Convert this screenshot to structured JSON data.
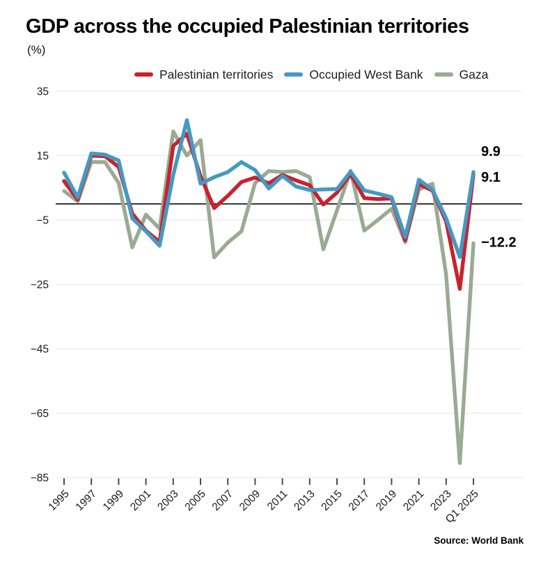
{
  "page": {
    "title": "GDP across the occupied Palestinian territories",
    "subtitle": "(%)",
    "source": "Source: World Bank"
  },
  "legend": [
    {
      "label": "Palestinian territories",
      "color": "#c9212e"
    },
    {
      "label": "Occupied West Bank",
      "color": "#4599c2"
    },
    {
      "label": "Gaza",
      "color": "#9aaa93"
    }
  ],
  "annotations": [
    {
      "text": "9.9",
      "series": "Occupied West Bank"
    },
    {
      "text": "9.1",
      "series": "Palestinian territories"
    },
    {
      "text": "−12.2",
      "series": "Gaza"
    }
  ],
  "colors": {
    "grid": "#e4e4e4",
    "zero_line": "#1c1c1c",
    "tick": "#4a4a4a",
    "text": "#191919"
  },
  "chart_data": {
    "type": "line",
    "x": [
      "1995",
      "1996",
      "1997",
      "1998",
      "1999",
      "2000",
      "2001",
      "2002",
      "2003",
      "2004",
      "2005",
      "2006",
      "2007",
      "2008",
      "2009",
      "2010",
      "2011",
      "2012",
      "2013",
      "2014",
      "2015",
      "2016",
      "2017",
      "2018",
      "2019",
      "2020",
      "2021",
      "2022",
      "2023",
      "2024",
      "Q1 2025"
    ],
    "x_tick_labels": [
      "1995",
      "1997",
      "1999",
      "2001",
      "2003",
      "2005",
      "2007",
      "2009",
      "2011",
      "2013",
      "2015",
      "2017",
      "2019",
      "2021",
      "2023",
      "Q1 2025"
    ],
    "y_ticks": [
      35,
      15,
      -5,
      -25,
      -45,
      -65,
      -85
    ],
    "y_tick_labels": [
      "35",
      "15",
      "−5",
      "−25",
      "−45",
      "−65",
      "−85"
    ],
    "ylim": [
      -85,
      35
    ],
    "zero_line": true,
    "grid": "horizontal",
    "legend_position": "top",
    "title": "GDP across the occupied Palestinian territories",
    "ylabel": "(%)",
    "series": [
      {
        "name": "Palestinian territories",
        "color": "#c9212e",
        "values": [
          7.1,
          1.3,
          15.0,
          14.8,
          11.5,
          -3.0,
          -8.3,
          -11.8,
          18.0,
          21.8,
          8.6,
          -1.3,
          2.5,
          6.8,
          8.2,
          6.4,
          9.0,
          7.3,
          5.8,
          -0.2,
          3.5,
          9.3,
          1.8,
          1.5,
          1.7,
          -11.3,
          6.2,
          4.1,
          -5.5,
          -26.4,
          9.1
        ]
      },
      {
        "name": "Occupied West Bank",
        "color": "#4599c2",
        "values": [
          9.7,
          2.0,
          15.7,
          15.3,
          13.5,
          -4.5,
          -8.5,
          -13.0,
          9.0,
          26.0,
          6.3,
          8.3,
          9.9,
          13.0,
          10.5,
          4.8,
          8.7,
          5.4,
          4.3,
          4.5,
          4.6,
          10.0,
          4.2,
          3.2,
          2.1,
          -10.3,
          7.5,
          4.4,
          -4.5,
          -16.5,
          9.9
        ]
      },
      {
        "name": "Gaza",
        "color": "#9aaa93",
        "values": [
          4.0,
          0.8,
          13.0,
          13.0,
          6.5,
          -13.5,
          -3.3,
          -7.7,
          22.5,
          15.0,
          19.8,
          -16.6,
          -12.0,
          -8.5,
          6.5,
          10.2,
          9.9,
          10.2,
          8.3,
          -14.1,
          -2.0,
          10.3,
          -8.3,
          -5.0,
          -1.5,
          -11.9,
          4.5,
          6.3,
          -22.0,
          -80.5,
          -12.2
        ]
      }
    ]
  }
}
